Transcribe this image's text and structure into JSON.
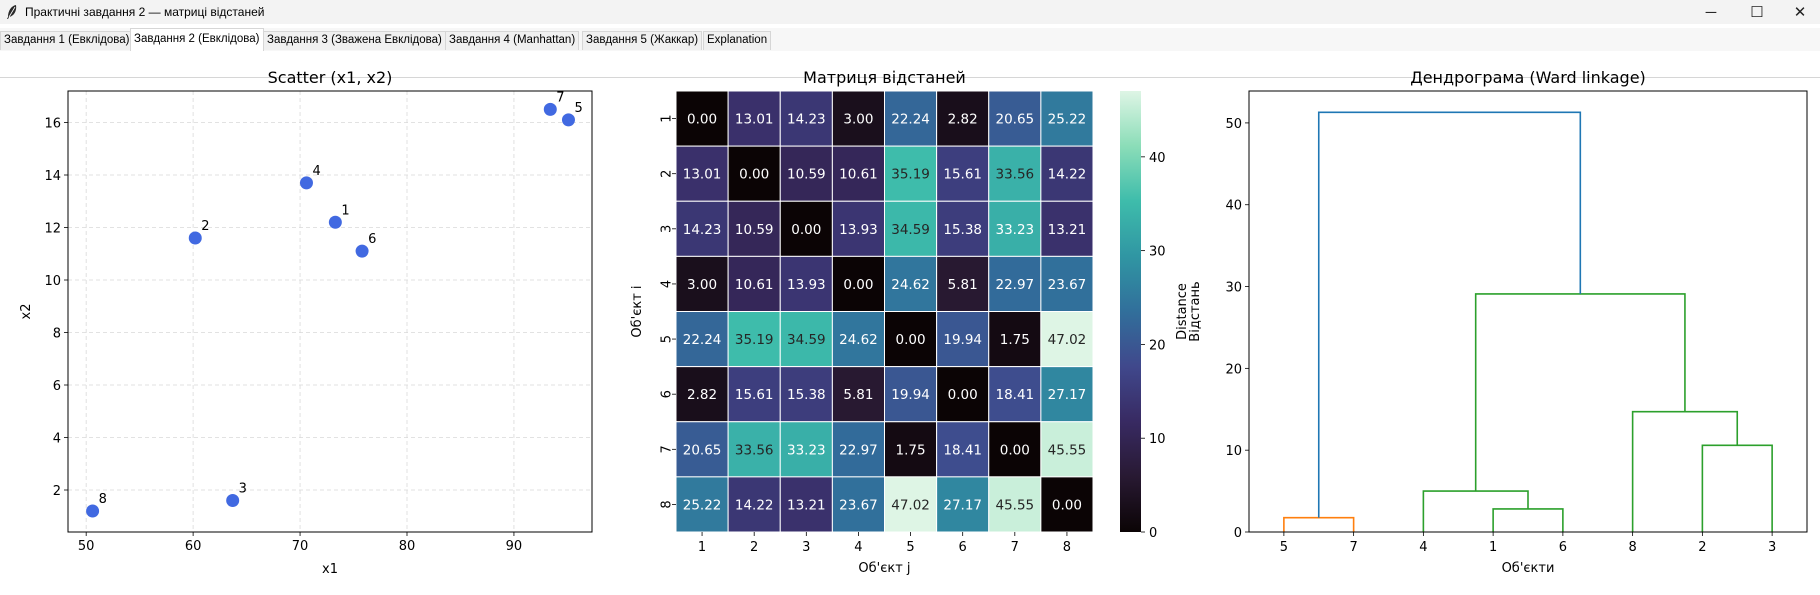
{
  "window": {
    "title": "Практичні завдання 2 — матриці відстаней",
    "app_icon": "feather-icon",
    "controls": {
      "minimize": "─",
      "maximize": "☐",
      "close": "✕"
    }
  },
  "tabs": [
    {
      "label": "Завдання 1 (Евклідова)",
      "active": false
    },
    {
      "label": "Завдання 2 (Евклідова)",
      "active": true
    },
    {
      "label": "Завдання 3 (Зважена Евклідова)",
      "active": false
    },
    {
      "label": "Завдання 4 (Manhattan)",
      "active": false
    },
    {
      "label": "Завдання 5 (Жаккар)",
      "active": false
    },
    {
      "label": "Explanation",
      "active": false
    }
  ],
  "chart_data": [
    {
      "type": "scatter",
      "title": "Scatter (x1, x2)",
      "xlabel": "x1",
      "ylabel": "x2",
      "xlim": [
        48.3,
        97.3
      ],
      "ylim": [
        0.4,
        17.2
      ],
      "xticks": [
        50,
        60,
        70,
        80,
        90
      ],
      "yticks": [
        2,
        4,
        6,
        8,
        10,
        12,
        14,
        16
      ],
      "grid": true,
      "color": "#4169e1",
      "points": [
        {
          "label": "1",
          "x": 73.3,
          "y": 12.2
        },
        {
          "label": "2",
          "x": 60.2,
          "y": 11.6
        },
        {
          "label": "3",
          "x": 63.7,
          "y": 1.6
        },
        {
          "label": "4",
          "x": 70.6,
          "y": 13.7
        },
        {
          "label": "5",
          "x": 95.1,
          "y": 16.1
        },
        {
          "label": "6",
          "x": 75.8,
          "y": 11.1
        },
        {
          "label": "7",
          "x": 93.4,
          "y": 16.5
        },
        {
          "label": "8",
          "x": 50.6,
          "y": 1.2
        }
      ]
    },
    {
      "type": "heatmap",
      "title": "Матриця відстаней",
      "xlabel": "Об'єкт j",
      "ylabel": "Об'єкт i",
      "labels": [
        "1",
        "2",
        "3",
        "4",
        "5",
        "6",
        "7",
        "8"
      ],
      "colorbar_label": "Distance",
      "colorbar_ticks": [
        0,
        10,
        20,
        30,
        40
      ],
      "vmin": 0,
      "vmax": 47.02,
      "colormap": "mako",
      "matrix": [
        [
          0.0,
          13.01,
          14.23,
          3.0,
          22.24,
          2.82,
          20.65,
          25.22
        ],
        [
          13.01,
          0.0,
          10.59,
          10.61,
          35.19,
          15.61,
          33.56,
          14.22
        ],
        [
          14.23,
          10.59,
          0.0,
          13.93,
          34.59,
          15.38,
          33.23,
          13.21
        ],
        [
          3.0,
          10.61,
          13.93,
          0.0,
          24.62,
          5.81,
          22.97,
          23.67
        ],
        [
          22.24,
          35.19,
          34.59,
          24.62,
          0.0,
          19.94,
          1.75,
          47.02
        ],
        [
          2.82,
          15.61,
          15.38,
          5.81,
          19.94,
          0.0,
          18.41,
          27.17
        ],
        [
          20.65,
          33.56,
          33.23,
          22.97,
          1.75,
          18.41,
          0.0,
          45.55
        ],
        [
          25.22,
          14.22,
          13.21,
          23.67,
          47.02,
          27.17,
          45.55,
          0.0
        ]
      ]
    },
    {
      "type": "dendrogram",
      "title": "Дендрограма (Ward linkage)",
      "xlabel": "Об'єкти",
      "ylabel": "Відстань",
      "ylim": [
        0,
        53.9
      ],
      "yticks": [
        0,
        10,
        20,
        30,
        40,
        50
      ],
      "leaves": [
        "5",
        "7",
        "4",
        "1",
        "6",
        "8",
        "2",
        "3"
      ],
      "colors": {
        "cluster_a": "#ff7f0e",
        "cluster_b": "#2ca02c",
        "root": "#1f77b4"
      },
      "links": [
        {
          "left": "5",
          "right": "7",
          "height": 1.75,
          "color": "cluster_a"
        },
        {
          "left": "1",
          "right": "6",
          "height": 2.82,
          "color": "cluster_b"
        },
        {
          "left": "4",
          "right": "(1,6)",
          "height": 5.0,
          "color": "cluster_b"
        },
        {
          "left": "2",
          "right": "3",
          "height": 10.59,
          "color": "cluster_b"
        },
        {
          "left": "8",
          "right": "(2,3)",
          "height": 14.7,
          "color": "cluster_b"
        },
        {
          "left": "(4,1,6)",
          "right": "(8,2,3)",
          "height": 29.1,
          "color": "cluster_b"
        },
        {
          "left": "(5,7)",
          "right": "(4,1,6,8,2,3)",
          "height": 51.3,
          "color": "root"
        }
      ]
    }
  ]
}
